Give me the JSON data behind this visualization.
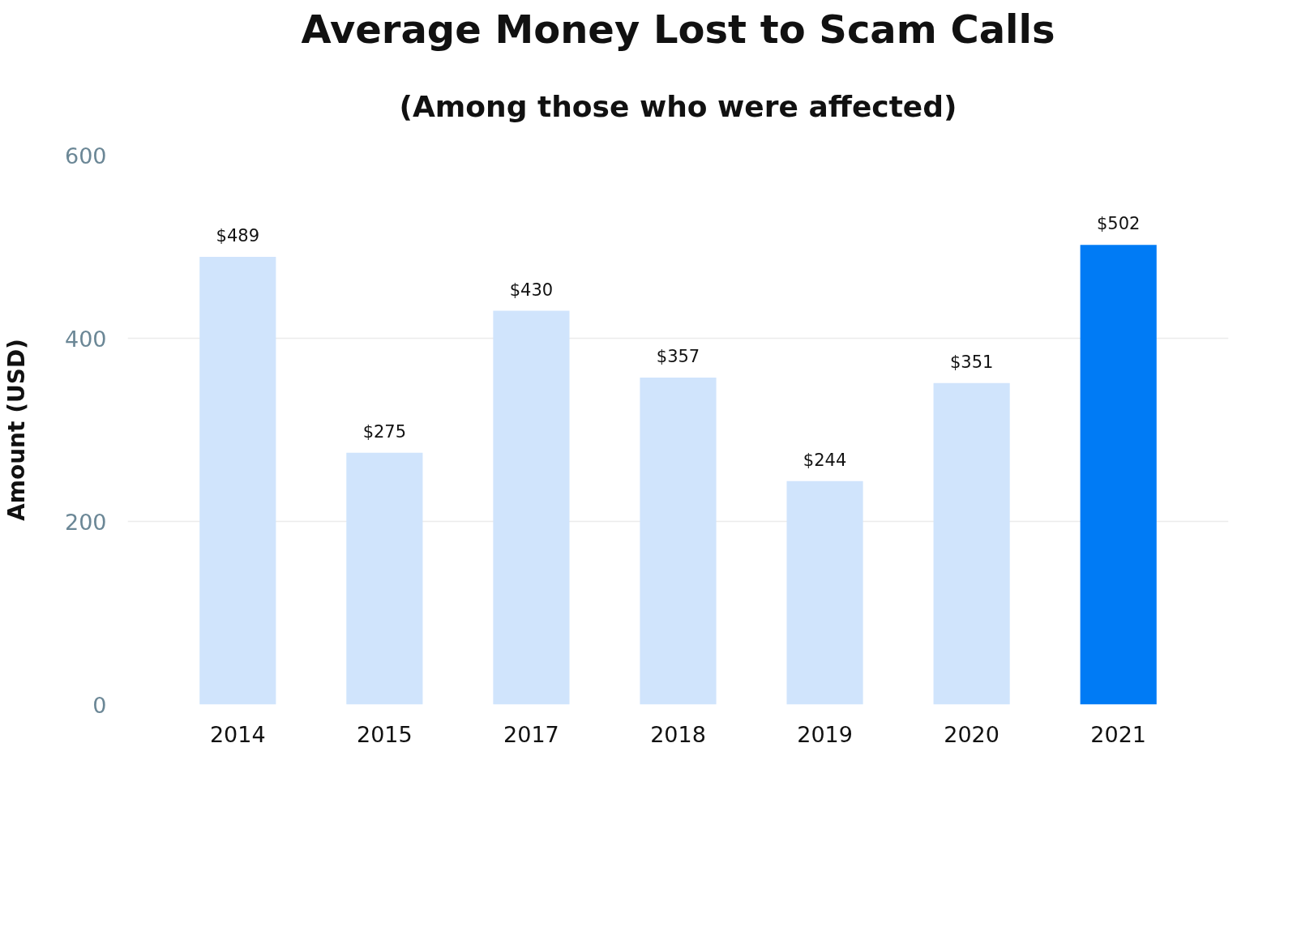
{
  "chart_data": {
    "type": "bar",
    "title": "Average Money Lost to Scam Calls",
    "subtitle": "(Among those who were affected)",
    "ylabel": "Amount (USD)",
    "categories": [
      "2014",
      "2015",
      "2017",
      "2018",
      "2019",
      "2020",
      "2021"
    ],
    "values": [
      489,
      275,
      430,
      357,
      244,
      351,
      502
    ],
    "colors": [
      "#d0e4fc",
      "#d0e4fc",
      "#d0e4fc",
      "#d0e4fc",
      "#d0e4fc",
      "#d0e4fc",
      "#007bf5"
    ],
    "value_labels": [
      "$489",
      "$275",
      "$430",
      "$357",
      "$244",
      "$351",
      "$502"
    ],
    "ylim": [
      0,
      600
    ],
    "yticks": [
      0,
      200,
      400,
      600
    ],
    "grid": "y"
  }
}
